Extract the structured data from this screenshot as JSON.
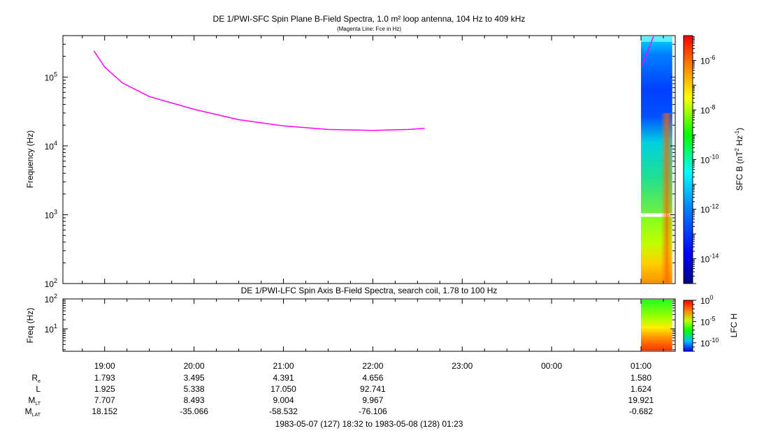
{
  "chart_data": [
    {
      "type": "heatmap",
      "title": "DE 1/PWI-SFC  Spin Plane B-Field Spectra, 1.0 m² loop antenna, 104 Hz to 409 kHz",
      "subtitle": "(Magenta Line: Fce in Hz)",
      "ylabel": "Frequency (Hz)",
      "yscale": "log",
      "ylim": [
        100,
        400000
      ],
      "y_ticks": [
        {
          "base": "10",
          "exp": "2"
        },
        {
          "base": "10",
          "exp": "3"
        },
        {
          "base": "10",
          "exp": "4"
        },
        {
          "base": "10",
          "exp": "5"
        }
      ],
      "colorbar": {
        "label_prefix": "SFC B (nT",
        "label_exp1": "2",
        "label_mid": " Hz",
        "label_exp2": "-1",
        "label_suffix": ")",
        "scale": "log",
        "range": [
          1e-15,
          1e-05
        ],
        "ticks": [
          {
            "base": "10",
            "exp": "-6"
          },
          {
            "base": "10",
            "exp": "-8"
          },
          {
            "base": "10",
            "exp": "-10"
          },
          {
            "base": "10",
            "exp": "-12"
          },
          {
            "base": "10",
            "exp": "-14"
          }
        ]
      },
      "fce_line": {
        "name": "Fce in Hz",
        "color": "#ff00ff",
        "hours": [
          18.88,
          19.0,
          19.2,
          19.5,
          20.0,
          20.5,
          21.0,
          21.5,
          22.0,
          22.4,
          22.58
        ],
        "values": [
          240000,
          140000,
          82000,
          52000,
          34000,
          24000,
          19500,
          17300,
          16800,
          17300,
          18000
        ]
      },
      "spectrogram_hours": [
        25.0,
        25.35
      ]
    },
    {
      "type": "heatmap",
      "title": "DE 1/PWI-LFC  Spin Axis B-Field Spectra, search coil, 1.78 to 100 Hz",
      "ylabel": "Freq (Hz)",
      "yscale": "log",
      "ylim": [
        1.78,
        100
      ],
      "y_ticks": [
        {
          "base": "10",
          "exp": "2"
        },
        {
          "base": "10",
          "exp": "1"
        }
      ],
      "colorbar": {
        "label": "LFC H",
        "scale": "log",
        "range": [
          1e-12,
          1
        ],
        "ticks": [
          {
            "base": "10",
            "exp": "0"
          },
          {
            "base": "10",
            "exp": "-5"
          },
          {
            "base": "10",
            "exp": "-10"
          }
        ]
      },
      "spectrogram_hours": [
        25.0,
        25.35
      ]
    }
  ],
  "x_axis": {
    "hour_range": [
      18.533,
      25.383
    ],
    "ticks": [
      {
        "hour": 19,
        "label": "19:00"
      },
      {
        "hour": 20,
        "label": "20:00"
      },
      {
        "hour": 21,
        "label": "21:00"
      },
      {
        "hour": 22,
        "label": "22:00"
      },
      {
        "hour": 23,
        "label": "23:00"
      },
      {
        "hour": 24,
        "label": "00:00"
      },
      {
        "hour": 25,
        "label": "01:00"
      }
    ]
  },
  "ephemeris": {
    "rows": [
      {
        "label": "R",
        "sub": "e",
        "values": [
          "1.793",
          "3.495",
          "4.391",
          "4.656",
          "",
          "",
          "1.580"
        ]
      },
      {
        "label": "L",
        "sub": "",
        "values": [
          "1.925",
          "5.338",
          "17.050",
          "92.741",
          "",
          "",
          "1.624"
        ]
      },
      {
        "label": "M",
        "sub": "LT",
        "values": [
          "7.707",
          "8.493",
          "9.004",
          "9.967",
          "",
          "",
          "19.921"
        ]
      },
      {
        "label": "M",
        "sub": "LAT",
        "values": [
          "18.152",
          "-35.066",
          "-58.532",
          "-76.106",
          "",
          "",
          "-0.682"
        ]
      }
    ]
  },
  "time_range": "1983-05-07 (127) 18:32 to 1983-05-08 (128) 01:23"
}
